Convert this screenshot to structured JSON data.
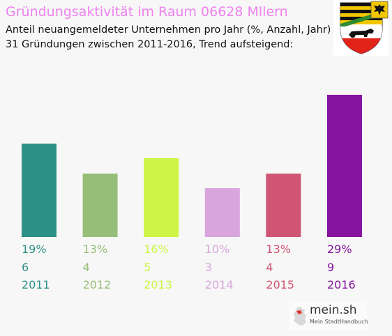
{
  "header": {
    "title": "Gründungsaktivität im Raum 06628 Mllern",
    "subtitle_line1": "Anteil neuangemeldeter Unternehmen pro Jahr (%, Anzahl, Jahr)",
    "subtitle_line2": "31 Gründungen zwischen 2011-2016, Trend aufsteigend:"
  },
  "colors": {
    "title": "#ee82ee",
    "crest_black": "#111111",
    "crest_gold": "#f2c600",
    "crest_green": "#2e8b2e",
    "crest_red": "#e2231a"
  },
  "crest": {
    "icon": "coat-of-arms-icon"
  },
  "branding": {
    "name": "mein.sh",
    "tagline": "Mein StadtHandbuch",
    "icon": "germany-map-icon"
  },
  "chart_data": {
    "type": "bar",
    "categories": [
      "2011",
      "2012",
      "2013",
      "2014",
      "2015",
      "2016"
    ],
    "percent_labels": [
      "19%",
      "13%",
      "16%",
      "10%",
      "13%",
      "29%"
    ],
    "values": [
      19,
      13,
      16,
      10,
      13,
      29
    ],
    "counts": [
      6,
      4,
      5,
      3,
      4,
      9
    ],
    "colors": [
      "#2e9188",
      "#96be78",
      "#cdf546",
      "#d8a5dc",
      "#d05473",
      "#86149e"
    ],
    "ylim": [
      0,
      29
    ],
    "title": "Gründungsaktivität im Raum 06628 Mllern",
    "xlabel": "",
    "ylabel": "",
    "grid": false,
    "legend": "none"
  }
}
